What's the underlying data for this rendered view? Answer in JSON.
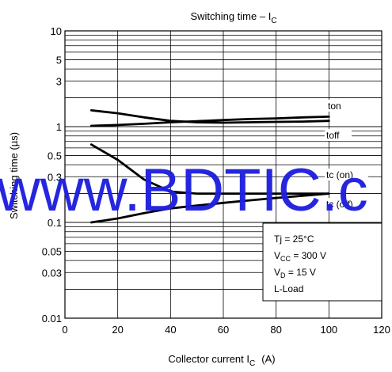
{
  "chart_data": {
    "type": "line",
    "title": "Switching time – IC",
    "title_main": "Switching time – I",
    "title_sub": "C",
    "xlabel_main": "Collector current  I",
    "xlabel_sub": "C",
    "xlabel_unit": "(A)",
    "ylabel": "Switching time    (µs)",
    "xlim": [
      0,
      120
    ],
    "ylim": [
      0.01,
      10
    ],
    "y_scale": "log",
    "grid": true,
    "x_ticks": [
      0,
      20,
      40,
      60,
      80,
      100,
      120
    ],
    "x_tick_labels": [
      "0",
      "20",
      "40",
      "60",
      "80",
      "100",
      "120"
    ],
    "y_ticks": [
      0.01,
      0.03,
      0.05,
      0.1,
      0.3,
      0.5,
      1,
      3,
      5,
      10
    ],
    "y_tick_labels": [
      "0.01",
      "0.03",
      "0.05",
      "0.1",
      "0.3",
      "0.5",
      "1",
      "3",
      "5",
      "10"
    ],
    "series": [
      {
        "name": "ton",
        "x": [
          10,
          20,
          30,
          40,
          50,
          60,
          70,
          80,
          90,
          100
        ],
        "y": [
          1.48,
          1.38,
          1.25,
          1.15,
          1.11,
          1.1,
          1.11,
          1.12,
          1.13,
          1.15
        ]
      },
      {
        "name": "toff",
        "x": [
          10,
          20,
          30,
          40,
          50,
          60,
          70,
          80,
          90,
          100
        ],
        "y": [
          1.02,
          1.04,
          1.07,
          1.11,
          1.14,
          1.17,
          1.2,
          1.22,
          1.25,
          1.27
        ]
      },
      {
        "name": "tc (on)",
        "x": [
          10,
          20,
          30,
          40,
          50,
          60,
          70,
          80,
          90,
          100
        ],
        "y": [
          0.65,
          0.45,
          0.28,
          0.21,
          0.2,
          0.2,
          0.2,
          0.2,
          0.2,
          0.2
        ]
      },
      {
        "name": "tc (off)",
        "x": [
          10,
          20,
          30,
          40,
          50,
          60,
          70,
          80,
          90,
          100
        ],
        "y": [
          0.1,
          0.11,
          0.125,
          0.14,
          0.15,
          0.16,
          0.17,
          0.18,
          0.19,
          0.2
        ]
      }
    ],
    "series_labels": [
      "ton",
      "toff",
      "tc (on)",
      "tc (off)"
    ],
    "conditions": [
      {
        "main": "Tj = 25°C"
      },
      {
        "main": "V",
        "sub": "CC",
        "rest": " = 300 V"
      },
      {
        "main": "V",
        "sub": "D",
        "rest": " = 15 V"
      },
      {
        "main": "L-Load"
      }
    ],
    "legend_placement": "bottom-right"
  },
  "watermark": "www.BDTIC.c"
}
